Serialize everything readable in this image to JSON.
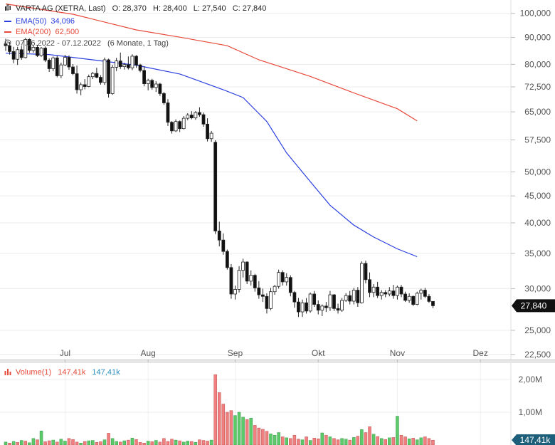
{
  "header": {
    "title": "VARTA AG (XETRA, Last)",
    "o": "O: 28,370",
    "h": "H: 28,400",
    "l": "L: 27,540",
    "c": "C: 27,840",
    "ema50_label": "EMA(50)",
    "ema50_value": "34,096",
    "ema200_label": "EMA(200)",
    "ema200_value": "62,500",
    "range": "07.06.2022 - 07.12.2022",
    "range_detail": "(6 Monate, 1 Tag)"
  },
  "volume_header": {
    "label": "Volume(1)",
    "value1": "147,41k",
    "value2": "147,41k"
  },
  "colors": {
    "ema50": "#2b3fe0",
    "ema200": "#e8493a",
    "up_volume": "#5cc96b",
    "down_volume": "#f08080",
    "last_badge": "#111111",
    "vol_badge": "#1d5f7a"
  },
  "chart_data": [
    {
      "type": "candlestick",
      "log_scale": true,
      "ylim": [
        22000,
        106000
      ],
      "yticks": [
        100000,
        90000,
        80000,
        72500,
        65000,
        57500,
        50000,
        45000,
        40000,
        35000,
        30000,
        25000,
        22500
      ],
      "ytick_labels": [
        "100,000",
        "90,000",
        "80,000",
        "72,500",
        "65,000",
        "57,500",
        "50,000",
        "45,000",
        "40,000",
        "35,000",
        "30,000",
        "25,000",
        "22,500"
      ],
      "xtick_labels": [
        "Jul",
        "Aug",
        "Sep",
        "Okt",
        "Nov",
        "Dez"
      ],
      "xtick_days": [
        16,
        37,
        59,
        80,
        100,
        121
      ],
      "last_value_label": "27,840",
      "candles": [
        [
          87.5,
          89.5,
          84.8,
          86.8
        ],
        [
          86.8,
          88.2,
          83.5,
          84.6
        ],
        [
          84.6,
          86.4,
          80.4,
          81.8
        ],
        [
          81.8,
          86.4,
          79.8,
          85.3
        ],
        [
          85.3,
          86.6,
          81.6,
          82.4
        ],
        [
          82.4,
          89.8,
          82.1,
          89.2
        ],
        [
          89.2,
          89.6,
          84.1,
          85.0
        ],
        [
          85.0,
          87.0,
          84.2,
          86.2
        ],
        [
          86.2,
          87.1,
          82.6,
          83.1
        ],
        [
          83.1,
          86.3,
          82.7,
          85.9
        ],
        [
          85.9,
          86.5,
          80.8,
          81.5
        ],
        [
          81.5,
          82.1,
          77.4,
          78.5
        ],
        [
          78.5,
          82.8,
          77.6,
          82.3
        ],
        [
          82.3,
          83.1,
          75.6,
          76.1
        ],
        [
          76.1,
          80.6,
          75.3,
          79.8
        ],
        [
          79.8,
          83.4,
          79.4,
          82.5
        ],
        [
          82.5,
          83.2,
          78.1,
          79.1
        ],
        [
          79.1,
          80.1,
          76.3,
          76.8
        ],
        [
          76.8,
          79.6,
          70.4,
          71.6
        ],
        [
          71.6,
          73.9,
          69.9,
          73.2
        ],
        [
          73.2,
          75.0,
          71.7,
          72.6
        ],
        [
          72.6,
          76.5,
          72.4,
          75.8
        ],
        [
          75.8,
          77.4,
          75.0,
          76.9
        ],
        [
          76.9,
          78.8,
          75.3,
          75.6
        ],
        [
          75.6,
          76.3,
          73.2,
          73.9
        ],
        [
          73.9,
          82.4,
          73.1,
          81.6
        ],
        [
          81.6,
          82.0,
          69.2,
          70.4
        ],
        [
          70.4,
          79.8,
          70.0,
          79.0
        ],
        [
          79.0,
          82.3,
          77.7,
          81.2
        ],
        [
          81.2,
          84.2,
          78.4,
          79.2
        ],
        [
          79.2,
          80.5,
          78.2,
          79.9
        ],
        [
          79.9,
          82.8,
          78.2,
          78.8
        ],
        [
          78.8,
          83.6,
          78.0,
          82.9
        ],
        [
          82.9,
          83.3,
          78.8,
          79.8
        ],
        [
          79.8,
          80.2,
          77.3,
          77.9
        ],
        [
          77.9,
          79.3,
          72.7,
          73.5
        ],
        [
          73.5,
          75.1,
          71.4,
          74.6
        ],
        [
          74.6,
          75.1,
          71.6,
          72.3
        ],
        [
          72.3,
          74.3,
          70.9,
          73.4
        ],
        [
          73.4,
          73.8,
          69.7,
          70.4
        ],
        [
          70.4,
          70.9,
          67.0,
          67.6
        ],
        [
          67.6,
          68.7,
          61.1,
          62.1
        ],
        [
          62.1,
          62.4,
          59.1,
          59.8
        ],
        [
          59.8,
          62.9,
          59.5,
          62.3
        ],
        [
          62.3,
          62.6,
          59.5,
          60.4
        ],
        [
          60.4,
          63.8,
          60.2,
          63.2
        ],
        [
          63.2,
          64.6,
          62.7,
          64.1
        ],
        [
          64.1,
          65.2,
          62.9,
          63.3
        ],
        [
          63.3,
          65.2,
          62.8,
          64.8
        ],
        [
          64.8,
          66.3,
          63.6,
          64.2
        ],
        [
          64.2,
          64.8,
          60.9,
          61.6
        ],
        [
          61.6,
          63.2,
          57.1,
          57.8
        ],
        [
          57.8,
          59.8,
          57.0,
          59.2
        ],
        [
          56.9,
          57.4,
          38.1,
          38.6
        ],
        [
          38.6,
          40.2,
          36.1,
          37.1
        ],
        [
          37.1,
          38.2,
          34.8,
          35.3
        ],
        [
          35.3,
          35.6,
          32.6,
          32.9
        ],
        [
          32.9,
          33.4,
          28.7,
          29.3
        ],
        [
          29.3,
          30.4,
          28.6,
          29.9
        ],
        [
          29.9,
          33.1,
          29.5,
          32.5
        ],
        [
          32.5,
          34.2,
          31.5,
          33.7
        ],
        [
          33.7,
          33.8,
          30.6,
          31.0
        ],
        [
          31.0,
          32.5,
          30.4,
          31.8
        ],
        [
          31.8,
          32.0,
          29.6,
          30.1
        ],
        [
          30.1,
          31.0,
          28.7,
          29.2
        ],
        [
          29.2,
          30.0,
          28.3,
          29.0
        ],
        [
          29.0,
          29.4,
          26.9,
          27.5
        ],
        [
          27.5,
          30.1,
          27.3,
          29.6
        ],
        [
          29.6,
          30.5,
          29.2,
          30.3
        ],
        [
          30.3,
          32.6,
          30.0,
          32.2
        ],
        [
          32.2,
          32.5,
          30.4,
          30.9
        ],
        [
          30.9,
          32.1,
          30.4,
          31.5
        ],
        [
          31.5,
          31.8,
          29.0,
          29.5
        ],
        [
          29.5,
          29.7,
          27.6,
          28.3
        ],
        [
          28.3,
          28.8,
          26.5,
          27.1
        ],
        [
          27.1,
          28.6,
          26.5,
          28.2
        ],
        [
          28.2,
          28.8,
          26.9,
          27.2
        ],
        [
          27.2,
          29.5,
          27.0,
          29.3
        ],
        [
          29.3,
          29.7,
          27.7,
          28.0
        ],
        [
          28.0,
          28.5,
          26.8,
          27.3
        ],
        [
          27.3,
          28.0,
          26.6,
          27.8
        ],
        [
          27.8,
          28.3,
          27.1,
          27.6
        ],
        [
          27.6,
          29.7,
          27.2,
          29.2
        ],
        [
          29.2,
          29.3,
          27.2,
          27.5
        ],
        [
          27.5,
          28.1,
          26.9,
          27.3
        ],
        [
          27.3,
          28.8,
          27.1,
          28.5
        ],
        [
          28.5,
          29.4,
          28.3,
          29.1
        ],
        [
          29.1,
          29.7,
          28.0,
          28.4
        ],
        [
          28.4,
          30.1,
          28.0,
          29.8
        ],
        [
          29.8,
          30.2,
          27.7,
          28.2
        ],
        [
          28.2,
          33.8,
          28.1,
          33.5
        ],
        [
          33.5,
          33.9,
          30.7,
          31.2
        ],
        [
          31.2,
          32.2,
          28.9,
          29.5
        ],
        [
          29.5,
          30.6,
          28.9,
          30.2
        ],
        [
          30.2,
          30.9,
          28.8,
          29.1
        ],
        [
          29.1,
          29.8,
          28.6,
          29.5
        ],
        [
          29.5,
          29.8,
          28.9,
          29.3
        ],
        [
          29.3,
          30.2,
          29.0,
          29.7
        ],
        [
          29.7,
          30.5,
          28.7,
          29.1
        ],
        [
          29.1,
          30.4,
          28.6,
          30.2
        ],
        [
          30.2,
          30.5,
          28.9,
          29.3
        ],
        [
          29.3,
          29.6,
          28.3,
          28.5
        ],
        [
          28.5,
          29.4,
          28.2,
          29.0
        ],
        [
          29.0,
          29.1,
          27.8,
          28.0
        ],
        [
          28.0,
          29.6,
          27.9,
          29.4
        ],
        [
          29.4,
          30.0,
          28.6,
          29.8
        ],
        [
          29.8,
          30.1,
          28.8,
          29.0
        ],
        [
          29.0,
          29.3,
          28.2,
          28.37
        ],
        [
          28.37,
          28.4,
          27.54,
          27.84
        ]
      ],
      "ema50": [
        [
          0,
          84.0
        ],
        [
          11,
          83.5
        ],
        [
          22,
          81.6
        ],
        [
          33,
          79.7
        ],
        [
          44,
          76.7
        ],
        [
          55,
          71.6
        ],
        [
          60,
          69.2
        ],
        [
          66,
          62.3
        ],
        [
          71,
          54.3
        ],
        [
          77,
          47.9
        ],
        [
          82,
          43.2
        ],
        [
          88,
          39.6
        ],
        [
          93,
          37.6
        ],
        [
          99,
          35.7
        ],
        [
          104,
          34.5
        ]
      ],
      "ema200": [
        [
          0,
          104.2
        ],
        [
          17,
          99.6
        ],
        [
          33,
          93.0
        ],
        [
          44,
          90.1
        ],
        [
          56,
          86.8
        ],
        [
          64,
          81.6
        ],
        [
          77,
          75.9
        ],
        [
          88,
          70.6
        ],
        [
          99,
          65.9
        ],
        [
          104,
          62.5
        ]
      ]
    },
    {
      "type": "bar",
      "title": "Volume(1)",
      "ylim": [
        0,
        2500
      ],
      "yticks": [
        1000,
        2000
      ],
      "ytick_labels": [
        "1,00M",
        "2,00M"
      ],
      "last_value_label": "147,41k",
      "values": [
        90,
        60,
        110,
        80,
        140,
        120,
        70,
        200,
        160,
        430,
        100,
        130,
        150,
        90,
        180,
        120,
        200,
        170,
        90,
        60,
        110,
        130,
        140,
        80,
        100,
        160,
        360,
        200,
        110,
        90,
        130,
        150,
        210,
        170,
        80,
        60,
        120,
        100,
        140,
        90,
        200,
        110,
        180,
        150,
        130,
        90,
        120,
        110,
        80,
        160,
        140,
        120,
        150,
        2150,
        1600,
        1250,
        1000,
        1050,
        900,
        1000,
        850,
        780,
        820,
        600,
        520,
        480,
        420,
        340,
        300,
        380,
        250,
        220,
        200,
        300,
        180,
        160,
        250,
        140,
        210,
        190,
        370,
        300,
        250,
        200,
        160,
        200,
        180,
        150,
        230,
        270,
        470,
        380,
        560,
        330,
        260,
        200,
        170,
        220,
        230,
        880,
        300,
        250,
        190,
        210,
        160,
        220,
        250,
        200,
        147.41
      ],
      "up": [
        1,
        0,
        1,
        0,
        1,
        0,
        1,
        1,
        0,
        1,
        0,
        0,
        1,
        0,
        1,
        1,
        0,
        0,
        0,
        1,
        0,
        1,
        1,
        0,
        0,
        1,
        0,
        1,
        1,
        0,
        1,
        0,
        1,
        0,
        0,
        0,
        1,
        0,
        1,
        0,
        0,
        0,
        0,
        1,
        0,
        1,
        1,
        0,
        1,
        0,
        0,
        0,
        1,
        0,
        0,
        0,
        0,
        0,
        1,
        1,
        1,
        0,
        1,
        0,
        0,
        0,
        0,
        1,
        1,
        1,
        0,
        1,
        0,
        0,
        0,
        1,
        0,
        1,
        0,
        0,
        1,
        0,
        1,
        0,
        0,
        1,
        1,
        0,
        1,
        0,
        1,
        0,
        0,
        1,
        0,
        1,
        0,
        1,
        0,
        1,
        0,
        0,
        1,
        0,
        1,
        1,
        0,
        0,
        0
      ]
    }
  ]
}
